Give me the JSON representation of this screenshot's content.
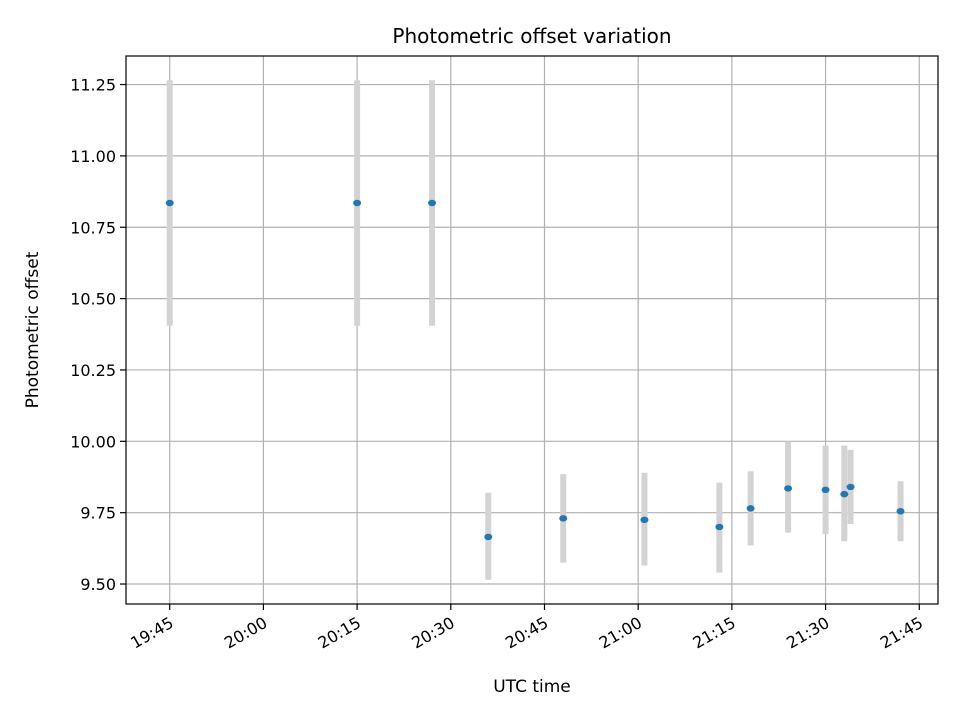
{
  "chart_data": {
    "type": "scatter",
    "title": "Photometric offset variation",
    "xlabel": "UTC time",
    "ylabel": "Photometric offset",
    "x_ticks": [
      "19:45",
      "20:00",
      "20:15",
      "20:30",
      "20:45",
      "21:00",
      "21:15",
      "21:30",
      "21:45"
    ],
    "y_ticks": [
      "9.50",
      "9.75",
      "10.00",
      "10.25",
      "10.50",
      "10.75",
      "11.00",
      "11.25"
    ],
    "xlim": [
      "19:38",
      "21:48"
    ],
    "ylim": [
      9.43,
      11.35
    ],
    "grid": true,
    "legend": "none",
    "colors": {
      "point": "#1f77b4",
      "errorbar": "#d3d3d3",
      "grid": "#b0b0b0"
    },
    "points": [
      {
        "time": "19:45",
        "y": 10.835,
        "low": 10.405,
        "high": 11.265
      },
      {
        "time": "20:15",
        "y": 10.835,
        "low": 10.405,
        "high": 11.265
      },
      {
        "time": "20:27",
        "y": 10.835,
        "low": 10.405,
        "high": 11.265
      },
      {
        "time": "20:36",
        "y": 9.665,
        "low": 9.515,
        "high": 9.82
      },
      {
        "time": "20:48",
        "y": 9.73,
        "low": 9.575,
        "high": 9.885
      },
      {
        "time": "21:01",
        "y": 9.725,
        "low": 9.565,
        "high": 9.89
      },
      {
        "time": "21:13",
        "y": 9.7,
        "low": 9.54,
        "high": 9.855
      },
      {
        "time": "21:18",
        "y": 9.765,
        "low": 9.635,
        "high": 9.895
      },
      {
        "time": "21:24",
        "y": 9.835,
        "low": 9.68,
        "high": 10.0
      },
      {
        "time": "21:30",
        "y": 9.83,
        "low": 9.675,
        "high": 9.985
      },
      {
        "time": "21:33",
        "y": 9.815,
        "low": 9.65,
        "high": 9.985
      },
      {
        "time": "21:34",
        "y": 9.84,
        "low": 9.71,
        "high": 9.97
      },
      {
        "time": "21:42",
        "y": 9.755,
        "low": 9.65,
        "high": 9.86
      }
    ]
  }
}
